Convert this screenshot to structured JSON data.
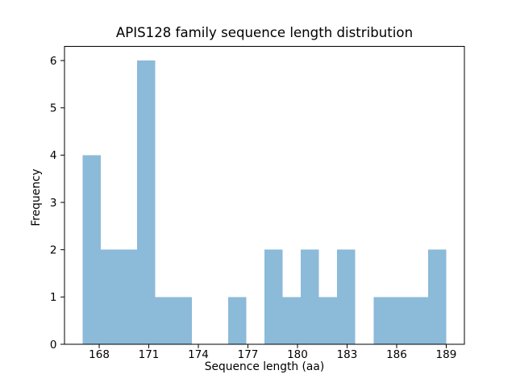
{
  "chart_data": {
    "type": "histogram",
    "title": "APIS128 family sequence length distribution",
    "xlabel": "Sequence length (aa)",
    "ylabel": "Frequency",
    "bin_edges": [
      167.0,
      168.1,
      169.2,
      170.3,
      171.4,
      172.5,
      173.6,
      174.7,
      175.8,
      176.9,
      178.0,
      179.1,
      180.2,
      181.3,
      182.4,
      183.5,
      184.6,
      185.7,
      186.8,
      187.9,
      189.0
    ],
    "counts": [
      4,
      2,
      2,
      6,
      1,
      1,
      0,
      0,
      1,
      0,
      2,
      1,
      2,
      1,
      2,
      0,
      1,
      1,
      1,
      2
    ],
    "xticks": [
      168,
      171,
      174,
      177,
      180,
      183,
      186,
      189
    ],
    "yticks": [
      0,
      1,
      2,
      3,
      4,
      5,
      6
    ],
    "xlim": [
      165.9,
      190.1
    ],
    "ylim": [
      0,
      6.3
    ],
    "grid": false,
    "legend": "none",
    "bar_color": "#8cbad9",
    "axis_color": "#000000",
    "text_color": "#000000",
    "background_color": "#ffffff"
  }
}
